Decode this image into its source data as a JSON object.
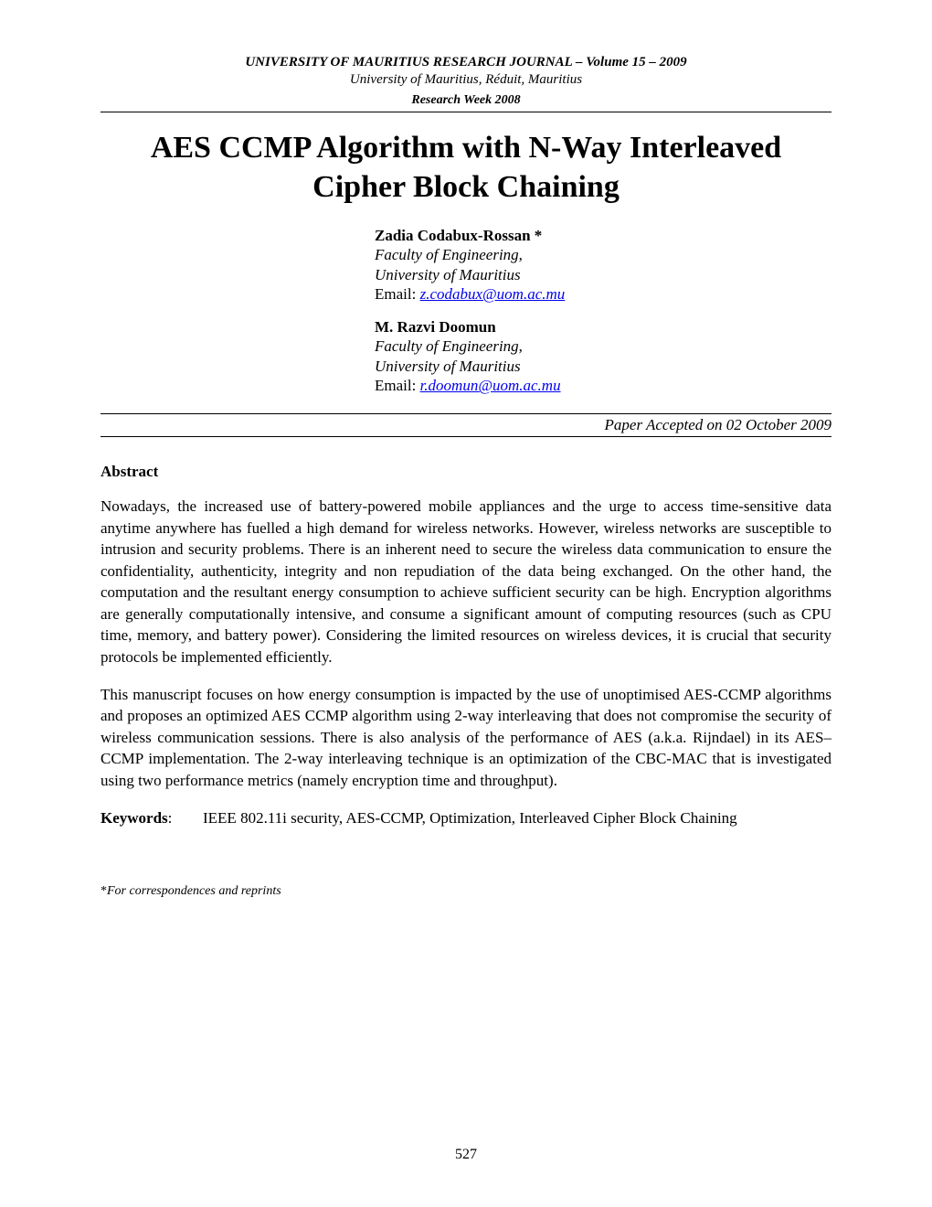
{
  "header": {
    "journal_line": "UNIVERSITY OF MAURITIUS RESEARCH JOURNAL – Volume 15 – 2009",
    "affiliation_line": "University of Mauritius, Réduit, Mauritius",
    "event_line": "Research Week 2008"
  },
  "title": "AES CCMP Algorithm with N-Way Interleaved Cipher Block Chaining",
  "authors": [
    {
      "name": "Zadia Codabux-Rossan *",
      "affil_line1": "Faculty of Engineering,",
      "affil_line2": "University of Mauritius",
      "email_label": "Email: ",
      "email": "z.codabux@uom.ac.mu"
    },
    {
      "name": "M. Razvi Doomun",
      "affil_line1": "Faculty of Engineering,",
      "affil_line2": "University of Mauritius",
      "email_label": "Email: ",
      "email": "r.doomun@uom.ac.mu"
    }
  ],
  "accepted": "Paper Accepted on 02 October 2009",
  "abstract_heading": "Abstract",
  "abstract_p1": "Nowadays, the increased use of battery-powered mobile appliances and the urge to access time-sensitive data anytime anywhere has fuelled a high demand for wireless networks. However, wireless networks are susceptible to intrusion and security problems. There is an inherent need to secure the wireless data communication to ensure the confidentiality, authenticity, integrity and non repudiation of the data being exchanged. On the other hand, the computation and the resultant energy consumption to achieve sufficient security can be high. Encryption algorithms are generally computationally intensive, and consume a significant amount of computing resources (such as CPU time, memory, and battery power). Considering the limited resources on wireless devices, it is crucial that security protocols be implemented efficiently.",
  "abstract_p2": "This manuscript focuses on how energy consumption is impacted by the use of unoptimised AES-CCMP algorithms and proposes an optimized AES CCMP algorithm using 2-way interleaving that does not compromise the security of wireless communication sessions. There is also analysis of the performance of AES (a.k.a. Rijndael) in its AES–CCMP implementation. The 2-way interleaving technique is an optimization of the CBC-MAC that is investigated using two performance metrics (namely encryption time and throughput).",
  "keywords_label": "Keywords",
  "keywords_sep": ":",
  "keywords_text": "IEEE 802.11i security, AES-CCMP, Optimization, Interleaved Cipher Block Chaining",
  "footnote_star": "*",
  "footnote": "For correspondences and reprints",
  "page_number": "527",
  "colors": {
    "link": "#0000ee",
    "text": "#000000",
    "background": "#ffffff",
    "rule": "#000000"
  },
  "typography": {
    "base_family": "Times New Roman",
    "title_size_pt": 25,
    "body_size_pt": 12,
    "header_size_pt": 11
  }
}
